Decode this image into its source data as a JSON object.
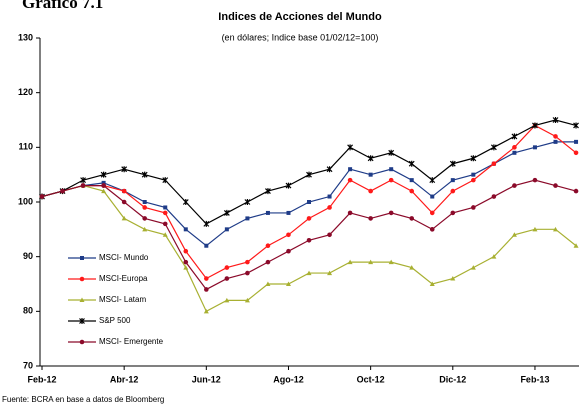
{
  "header": "Gráfico 7.1",
  "source": "Fuente: BCRA en base a datos de Bloomberg",
  "chart_data": {
    "type": "line",
    "title": "Indices de Acciones del Mundo",
    "subtitle": "(en dólares; Indice base 01/02/12=100)",
    "categories": [
      "Feb-12",
      null,
      null,
      null,
      "Abr-12",
      null,
      null,
      null,
      "Jun-12",
      null,
      null,
      null,
      "Ago-12",
      null,
      null,
      null,
      "Oct-12",
      null,
      null,
      null,
      "Dic-12",
      null,
      null,
      null,
      "Feb-13",
      null,
      null
    ],
    "ylim": [
      70,
      130
    ],
    "yticks": [
      70,
      80,
      90,
      100,
      110,
      120,
      130
    ],
    "grid": false,
    "legend": "lower-left",
    "series": [
      {
        "name": "MSCI- Mundo",
        "color": "#1f3c88",
        "marker": "square",
        "values": [
          101,
          102,
          103,
          103.5,
          102,
          100,
          99,
          95,
          92,
          95,
          97,
          98,
          98,
          100,
          101,
          106,
          105,
          106,
          104,
          101,
          104,
          105,
          107,
          109,
          110,
          111,
          111
        ]
      },
      {
        "name": "MSCI-Europa",
        "color": "#ff1a1a",
        "marker": "circle",
        "values": [
          101,
          102,
          103,
          103,
          102,
          99,
          98,
          91,
          86,
          88,
          89,
          92,
          94,
          97,
          99,
          104,
          102,
          104,
          102,
          98,
          102,
          104,
          107,
          110,
          114,
          112,
          109
        ]
      },
      {
        "name": "MSCI- Latam",
        "color": "#a8b032",
        "marker": "triangle",
        "values": [
          101,
          102,
          103,
          102,
          97,
          95,
          94,
          88,
          80,
          82,
          82,
          85,
          85,
          87,
          87,
          89,
          89,
          89,
          88,
          85,
          86,
          88,
          90,
          94,
          95,
          95,
          92
        ]
      },
      {
        "name": "S&P 500",
        "color": "#000000",
        "marker": "cross",
        "values": [
          101,
          102,
          104,
          105,
          106,
          105,
          104,
          100,
          96,
          98,
          100,
          102,
          103,
          105,
          106,
          110,
          108,
          109,
          107,
          104,
          107,
          108,
          110,
          112,
          114,
          115,
          114
        ]
      },
      {
        "name": "MSCI- Emergente",
        "color": "#8b0a2a",
        "marker": "circle",
        "values": [
          101,
          102,
          103,
          103,
          100,
          97,
          96,
          89,
          84,
          86,
          87,
          89,
          91,
          93,
          94,
          98,
          97,
          98,
          97,
          95,
          98,
          99,
          101,
          103,
          104,
          103,
          102
        ]
      }
    ]
  }
}
